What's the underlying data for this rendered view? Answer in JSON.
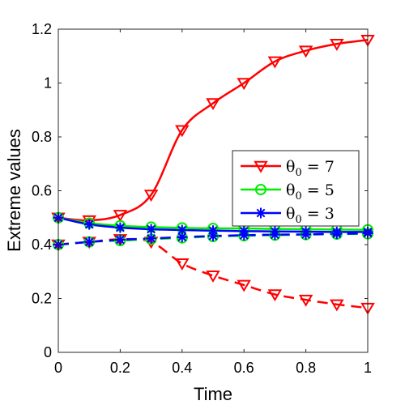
{
  "chart_data": {
    "type": "line",
    "xlabel": "Time",
    "ylabel": "Extreme values",
    "xlim": [
      0,
      1
    ],
    "ylim": [
      0,
      1.2
    ],
    "xticks": [
      "0",
      "0.2",
      "0.4",
      "0.6",
      "0.8",
      "1"
    ],
    "yticks": [
      "0",
      "0.2",
      "0.4",
      "0.6",
      "0.8",
      "1",
      "1.2"
    ],
    "grid": false,
    "legend_position": "center-right",
    "x": [
      0,
      0.1,
      0.2,
      0.3,
      0.4,
      0.5,
      0.6,
      0.7,
      0.8,
      0.9,
      1.0
    ],
    "series": [
      {
        "name": "θ0 = 7",
        "name_symbol": "θ",
        "name_sub": "0",
        "name_rest": " = 7",
        "color": "#ff0000",
        "marker": "triangle-down",
        "max": [
          0.5,
          0.49,
          0.51,
          0.585,
          0.825,
          0.925,
          1.0,
          1.08,
          1.12,
          1.145,
          1.16
        ],
        "min": [
          0.4,
          0.41,
          0.42,
          0.41,
          0.33,
          0.285,
          0.25,
          0.215,
          0.195,
          0.178,
          0.165
        ]
      },
      {
        "name": "θ0 = 5",
        "name_symbol": "θ",
        "name_sub": "0",
        "name_rest": " = 5",
        "color": "#00ee00",
        "marker": "circle",
        "max": [
          0.5,
          0.48,
          0.47,
          0.465,
          0.462,
          0.46,
          0.46,
          0.458,
          0.457,
          0.456,
          0.455
        ],
        "min": [
          0.4,
          0.41,
          0.415,
          0.42,
          0.425,
          0.43,
          0.433,
          0.435,
          0.437,
          0.439,
          0.44
        ]
      },
      {
        "name": "θ0 = 3",
        "name_symbol": "θ",
        "name_sub": "0",
        "name_rest": " = 3",
        "color": "#0000ff",
        "marker": "star",
        "max": [
          0.5,
          0.475,
          0.463,
          0.457,
          0.454,
          0.452,
          0.45,
          0.449,
          0.448,
          0.447,
          0.447
        ],
        "min": [
          0.4,
          0.41,
          0.418,
          0.423,
          0.428,
          0.432,
          0.435,
          0.437,
          0.438,
          0.44,
          0.442
        ]
      }
    ]
  }
}
